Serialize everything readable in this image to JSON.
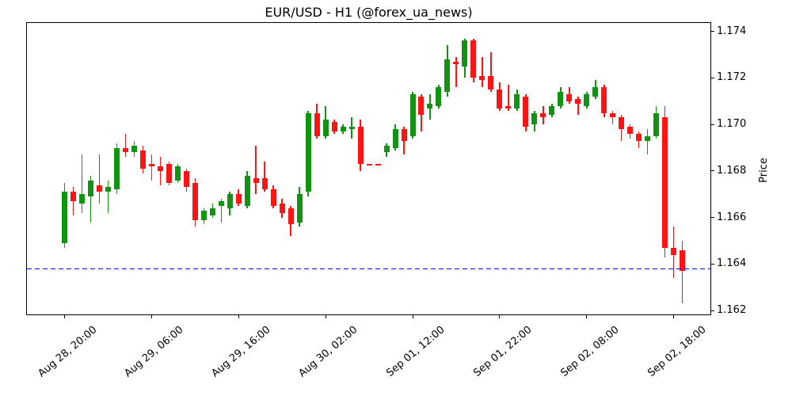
{
  "chart_data": {
    "type": "candlestick",
    "title": "EUR/USD - H1 (@forex_ua_news)",
    "ylabel": "Price",
    "xlabel": "",
    "grid": false,
    "legend": "none",
    "ylim": [
      1.1618,
      1.1744
    ],
    "xlim_index": [
      -4.4,
      74.3
    ],
    "up_color": "#129412",
    "down_color": "#ff1413",
    "support_line": {
      "value": 1.1638,
      "color": "#0000ff",
      "style": "dashed"
    },
    "y_ticks": [
      1.162,
      1.164,
      1.166,
      1.168,
      1.17,
      1.172,
      1.174
    ],
    "x_ticks": [
      {
        "index": 0,
        "label": "Aug 28, 20:00"
      },
      {
        "index": 10,
        "label": "Aug 29, 06:00"
      },
      {
        "index": 20,
        "label": "Aug 29, 16:00"
      },
      {
        "index": 30,
        "label": "Aug 30, 02:00"
      },
      {
        "index": 40,
        "label": "Sep 01, 12:00"
      },
      {
        "index": 50,
        "label": "Sep 01, 22:00"
      },
      {
        "index": 60,
        "label": "Sep 02, 08:00"
      },
      {
        "index": 70,
        "label": "Sep 02, 18:00"
      }
    ],
    "candles": [
      {
        "t": "Aug 28, 20:00",
        "o": 1.1649,
        "h": 1.1675,
        "l": 1.1647,
        "c": 1.1671
      },
      {
        "t": "Aug 28, 21:00",
        "o": 1.1671,
        "h": 1.1673,
        "l": 1.1661,
        "c": 1.1667
      },
      {
        "t": "Aug 28, 22:00",
        "o": 1.1666,
        "h": 1.1687,
        "l": 1.1662,
        "c": 1.167
      },
      {
        "t": "Aug 28, 23:00",
        "o": 1.1669,
        "h": 1.1678,
        "l": 1.1658,
        "c": 1.1676
      },
      {
        "t": "Aug 29, 00:00",
        "o": 1.1674,
        "h": 1.1687,
        "l": 1.1666,
        "c": 1.1671
      },
      {
        "t": "Aug 29, 01:00",
        "o": 1.1671,
        "h": 1.1676,
        "l": 1.1662,
        "c": 1.1673
      },
      {
        "t": "Aug 29, 02:00",
        "o": 1.1672,
        "h": 1.1692,
        "l": 1.167,
        "c": 1.169
      },
      {
        "t": "Aug 29, 03:00",
        "o": 1.169,
        "h": 1.1696,
        "l": 1.1686,
        "c": 1.1688
      },
      {
        "t": "Aug 29, 04:00",
        "o": 1.1688,
        "h": 1.1693,
        "l": 1.1686,
        "c": 1.1691
      },
      {
        "t": "Aug 29, 05:00",
        "o": 1.1689,
        "h": 1.1691,
        "l": 1.1679,
        "c": 1.1681
      },
      {
        "t": "Aug 29, 06:00",
        "o": 1.1683,
        "h": 1.1687,
        "l": 1.1676,
        "c": 1.1682
      },
      {
        "t": "Aug 29, 07:00",
        "o": 1.1682,
        "h": 1.1686,
        "l": 1.1674,
        "c": 1.168
      },
      {
        "t": "Aug 29, 08:00",
        "o": 1.1683,
        "h": 1.1684,
        "l": 1.1674,
        "c": 1.1675
      },
      {
        "t": "Aug 29, 09:00",
        "o": 1.1676,
        "h": 1.1683,
        "l": 1.1675,
        "c": 1.1682
      },
      {
        "t": "Aug 29, 10:00",
        "o": 1.168,
        "h": 1.1681,
        "l": 1.1671,
        "c": 1.1673
      },
      {
        "t": "Aug 29, 11:00",
        "o": 1.1675,
        "h": 1.1677,
        "l": 1.1656,
        "c": 1.1659
      },
      {
        "t": "Aug 29, 12:00",
        "o": 1.1659,
        "h": 1.1664,
        "l": 1.1657,
        "c": 1.1663
      },
      {
        "t": "Aug 29, 13:00",
        "o": 1.1661,
        "h": 1.1666,
        "l": 1.166,
        "c": 1.1664
      },
      {
        "t": "Aug 29, 14:00",
        "o": 1.1665,
        "h": 1.1668,
        "l": 1.1658,
        "c": 1.1667
      },
      {
        "t": "Aug 29, 15:00",
        "o": 1.1664,
        "h": 1.1671,
        "l": 1.1661,
        "c": 1.167
      },
      {
        "t": "Aug 29, 16:00",
        "o": 1.167,
        "h": 1.1672,
        "l": 1.1665,
        "c": 1.1666
      },
      {
        "t": "Aug 29, 17:00",
        "o": 1.1665,
        "h": 1.168,
        "l": 1.1664,
        "c": 1.1678
      },
      {
        "t": "Aug 29, 18:00",
        "o": 1.1677,
        "h": 1.1691,
        "l": 1.167,
        "c": 1.1675
      },
      {
        "t": "Aug 29, 19:00",
        "o": 1.1677,
        "h": 1.1684,
        "l": 1.1671,
        "c": 1.1672
      },
      {
        "t": "Aug 29, 20:00",
        "o": 1.1672,
        "h": 1.1674,
        "l": 1.1664,
        "c": 1.1665
      },
      {
        "t": "Aug 29, 21:00",
        "o": 1.1666,
        "h": 1.1668,
        "l": 1.166,
        "c": 1.1662
      },
      {
        "t": "Aug 29, 22:00",
        "o": 1.1664,
        "h": 1.1665,
        "l": 1.1652,
        "c": 1.1657
      },
      {
        "t": "Aug 29, 23:00",
        "o": 1.1658,
        "h": 1.1673,
        "l": 1.1656,
        "c": 1.167
      },
      {
        "t": "Aug 30, 00:00",
        "o": 1.1671,
        "h": 1.1706,
        "l": 1.1669,
        "c": 1.1705
      },
      {
        "t": "Aug 30, 01:00",
        "o": 1.1705,
        "h": 1.1709,
        "l": 1.1694,
        "c": 1.1695
      },
      {
        "t": "Aug 30, 02:00",
        "o": 1.1695,
        "h": 1.1708,
        "l": 1.1694,
        "c": 1.1702
      },
      {
        "t": "Aug 30, 03:00",
        "o": 1.1701,
        "h": 1.1702,
        "l": 1.1696,
        "c": 1.1697
      },
      {
        "t": "Aug 30, 04:00",
        "o": 1.1697,
        "h": 1.17,
        "l": 1.1696,
        "c": 1.1699
      },
      {
        "t": "Aug 30, 05:00",
        "o": 1.1698,
        "h": 1.1703,
        "l": 1.1694,
        "c": 1.1699
      },
      {
        "t": "Aug 30, 06:00",
        "o": 1.1699,
        "h": 1.1702,
        "l": 1.168,
        "c": 1.1683
      },
      {
        "t": "Sep 01, 07:00",
        "o": 1.1683,
        "h": 1.1683,
        "l": 1.1683,
        "c": 1.1683
      },
      {
        "t": "Sep 01, 08:00",
        "o": 1.1683,
        "h": 1.1683,
        "l": 1.1683,
        "c": 1.1683
      },
      {
        "t": "Sep 01, 09:00",
        "o": 1.1688,
        "h": 1.1692,
        "l": 1.1686,
        "c": 1.1691
      },
      {
        "t": "Sep 01, 10:00",
        "o": 1.169,
        "h": 1.17,
        "l": 1.1689,
        "c": 1.1698
      },
      {
        "t": "Sep 01, 11:00",
        "o": 1.1698,
        "h": 1.1699,
        "l": 1.1687,
        "c": 1.1693
      },
      {
        "t": "Sep 01, 12:00",
        "o": 1.1695,
        "h": 1.1714,
        "l": 1.1694,
        "c": 1.1713
      },
      {
        "t": "Sep 01, 13:00",
        "o": 1.1712,
        "h": 1.1713,
        "l": 1.1697,
        "c": 1.1704
      },
      {
        "t": "Sep 01, 14:00",
        "o": 1.1707,
        "h": 1.1713,
        "l": 1.1702,
        "c": 1.1709
      },
      {
        "t": "Sep 01, 15:00",
        "o": 1.1708,
        "h": 1.1717,
        "l": 1.1707,
        "c": 1.1716
      },
      {
        "t": "Sep 01, 16:00",
        "o": 1.1714,
        "h": 1.1734,
        "l": 1.1712,
        "c": 1.1728
      },
      {
        "t": "Sep 01, 17:00",
        "o": 1.1727,
        "h": 1.1729,
        "l": 1.1716,
        "c": 1.1726
      },
      {
        "t": "Sep 01, 18:00",
        "o": 1.1725,
        "h": 1.1737,
        "l": 1.172,
        "c": 1.1736
      },
      {
        "t": "Sep 01, 19:00",
        "o": 1.1736,
        "h": 1.1737,
        "l": 1.1718,
        "c": 1.172
      },
      {
        "t": "Sep 01, 20:00",
        "o": 1.1721,
        "h": 1.1729,
        "l": 1.1716,
        "c": 1.1719
      },
      {
        "t": "Sep 01, 21:00",
        "o": 1.1721,
        "h": 1.1731,
        "l": 1.1714,
        "c": 1.1715
      },
      {
        "t": "Sep 01, 22:00",
        "o": 1.1715,
        "h": 1.1718,
        "l": 1.1706,
        "c": 1.1707
      },
      {
        "t": "Sep 01, 23:00",
        "o": 1.1708,
        "h": 1.1717,
        "l": 1.1706,
        "c": 1.1707
      },
      {
        "t": "Sep 02, 00:00",
        "o": 1.1707,
        "h": 1.1715,
        "l": 1.1706,
        "c": 1.1713
      },
      {
        "t": "Sep 02, 01:00",
        "o": 1.1712,
        "h": 1.1713,
        "l": 1.1697,
        "c": 1.1699
      },
      {
        "t": "Sep 02, 02:00",
        "o": 1.17,
        "h": 1.1706,
        "l": 1.1697,
        "c": 1.1705
      },
      {
        "t": "Sep 02, 03:00",
        "o": 1.1705,
        "h": 1.1708,
        "l": 1.17,
        "c": 1.1703
      },
      {
        "t": "Sep 02, 04:00",
        "o": 1.1704,
        "h": 1.1709,
        "l": 1.1703,
        "c": 1.1708
      },
      {
        "t": "Sep 02, 05:00",
        "o": 1.1708,
        "h": 1.1716,
        "l": 1.1707,
        "c": 1.1714
      },
      {
        "t": "Sep 02, 06:00",
        "o": 1.1713,
        "h": 1.1716,
        "l": 1.1709,
        "c": 1.171
      },
      {
        "t": "Sep 02, 07:00",
        "o": 1.1711,
        "h": 1.1712,
        "l": 1.1704,
        "c": 1.1709
      },
      {
        "t": "Sep 02, 08:00",
        "o": 1.1708,
        "h": 1.1714,
        "l": 1.1707,
        "c": 1.1713
      },
      {
        "t": "Sep 02, 09:00",
        "o": 1.1712,
        "h": 1.1719,
        "l": 1.1711,
        "c": 1.1716
      },
      {
        "t": "Sep 02, 10:00",
        "o": 1.1716,
        "h": 1.1717,
        "l": 1.1703,
        "c": 1.1705
      },
      {
        "t": "Sep 02, 11:00",
        "o": 1.1705,
        "h": 1.1706,
        "l": 1.17,
        "c": 1.1703
      },
      {
        "t": "Sep 02, 12:00",
        "o": 1.1703,
        "h": 1.1704,
        "l": 1.1693,
        "c": 1.1698
      },
      {
        "t": "Sep 02, 13:00",
        "o": 1.1699,
        "h": 1.17,
        "l": 1.1694,
        "c": 1.1696
      },
      {
        "t": "Sep 02, 14:00",
        "o": 1.1696,
        "h": 1.1697,
        "l": 1.169,
        "c": 1.1693
      },
      {
        "t": "Sep 02, 15:00",
        "o": 1.1693,
        "h": 1.1698,
        "l": 1.1687,
        "c": 1.1695
      },
      {
        "t": "Sep 02, 16:00",
        "o": 1.1695,
        "h": 1.1708,
        "l": 1.1694,
        "c": 1.1705
      },
      {
        "t": "Sep 02, 17:00",
        "o": 1.1703,
        "h": 1.1708,
        "l": 1.1643,
        "c": 1.1647
      },
      {
        "t": "Sep 02, 18:00",
        "o": 1.1647,
        "h": 1.1656,
        "l": 1.1634,
        "c": 1.1644
      },
      {
        "t": "Sep 02, 19:00",
        "o": 1.1646,
        "h": 1.165,
        "l": 1.1623,
        "c": 1.1637
      }
    ]
  }
}
